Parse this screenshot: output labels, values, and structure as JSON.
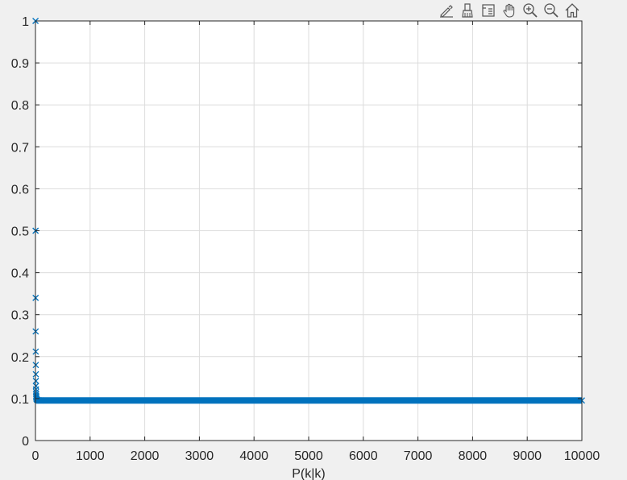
{
  "toolbar": {
    "items": [
      {
        "name": "edit-data-tip-icon"
      },
      {
        "name": "brush-icon"
      },
      {
        "name": "legend-icon"
      },
      {
        "name": "pan-hand-icon"
      },
      {
        "name": "zoom-in-icon"
      },
      {
        "name": "zoom-out-icon"
      },
      {
        "name": "home-icon"
      }
    ]
  },
  "chart_data": {
    "type": "scatter",
    "title": "",
    "xlabel": "P(k|k)",
    "ylabel": "",
    "xlim": [
      0,
      10000
    ],
    "ylim": [
      0,
      1
    ],
    "xticks": [
      0,
      1000,
      2000,
      3000,
      4000,
      5000,
      6000,
      7000,
      8000,
      9000,
      10000
    ],
    "yticks": [
      0,
      0.1,
      0.2,
      0.3,
      0.4,
      0.5,
      0.6,
      0.7,
      0.8,
      0.9,
      1
    ],
    "grid": true,
    "marker": "x",
    "color": "#0072BD",
    "series": [
      {
        "x": [
          1,
          2,
          3,
          4,
          5,
          6,
          7,
          8,
          9,
          10,
          11,
          12,
          13,
          14,
          15,
          20,
          30,
          40,
          60,
          100,
          10000
        ],
        "y": [
          1,
          0.5,
          0.34,
          0.26,
          0.212,
          0.18,
          0.158,
          0.142,
          0.13,
          0.122,
          0.116,
          0.111,
          0.107,
          0.104,
          0.102,
          0.099,
          0.097,
          0.0962,
          0.0958,
          0.0955,
          0.0955
        ]
      }
    ],
    "steady_state_value": 0.0955,
    "steady_state_from_x": 15
  }
}
